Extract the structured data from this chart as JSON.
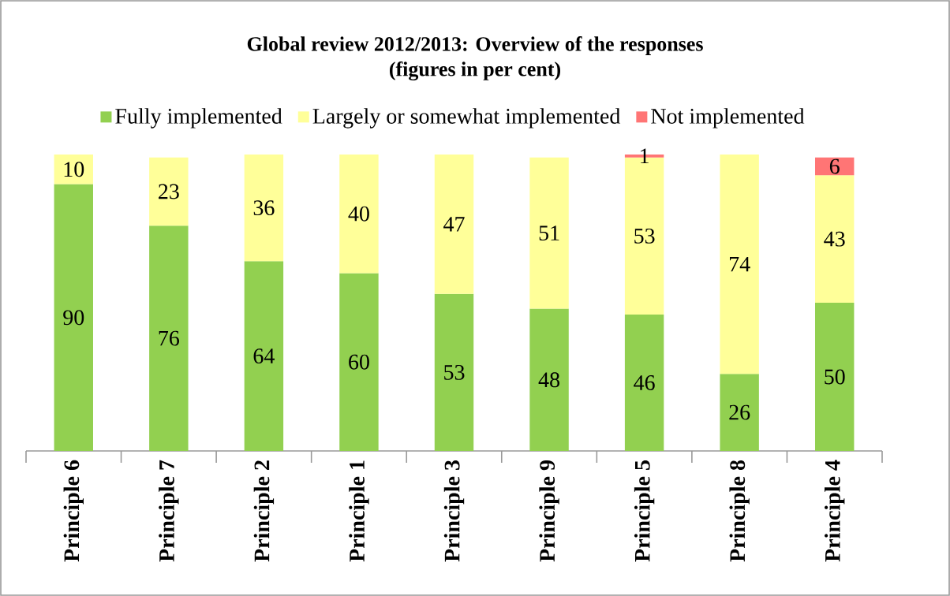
{
  "chart_data": {
    "type": "bar",
    "stacked": true,
    "title": "Global review 2012/2013: Overview of the responses",
    "subtitle": "(figures in per cent)",
    "categories": [
      "Principle 6",
      "Principle 7",
      "Principle 2",
      "Principle 1",
      "Principle 3",
      "Principle 9",
      "Principle 5",
      "Principle 8",
      "Principle 4"
    ],
    "series": [
      {
        "name": "Fully implemented",
        "color": "#92d050",
        "values": [
          90,
          76,
          64,
          60,
          53,
          48,
          46,
          26,
          50
        ]
      },
      {
        "name": "Largely or somewhat implemented",
        "color": "#ffff99",
        "values": [
          10,
          23,
          36,
          40,
          47,
          51,
          53,
          74,
          43
        ]
      },
      {
        "name": "Not implemented",
        "color": "#ff7575",
        "values": [
          null,
          null,
          null,
          null,
          null,
          null,
          1,
          null,
          6
        ]
      }
    ],
    "ylim": [
      0,
      100
    ],
    "data_labels": true,
    "legend": "top"
  }
}
